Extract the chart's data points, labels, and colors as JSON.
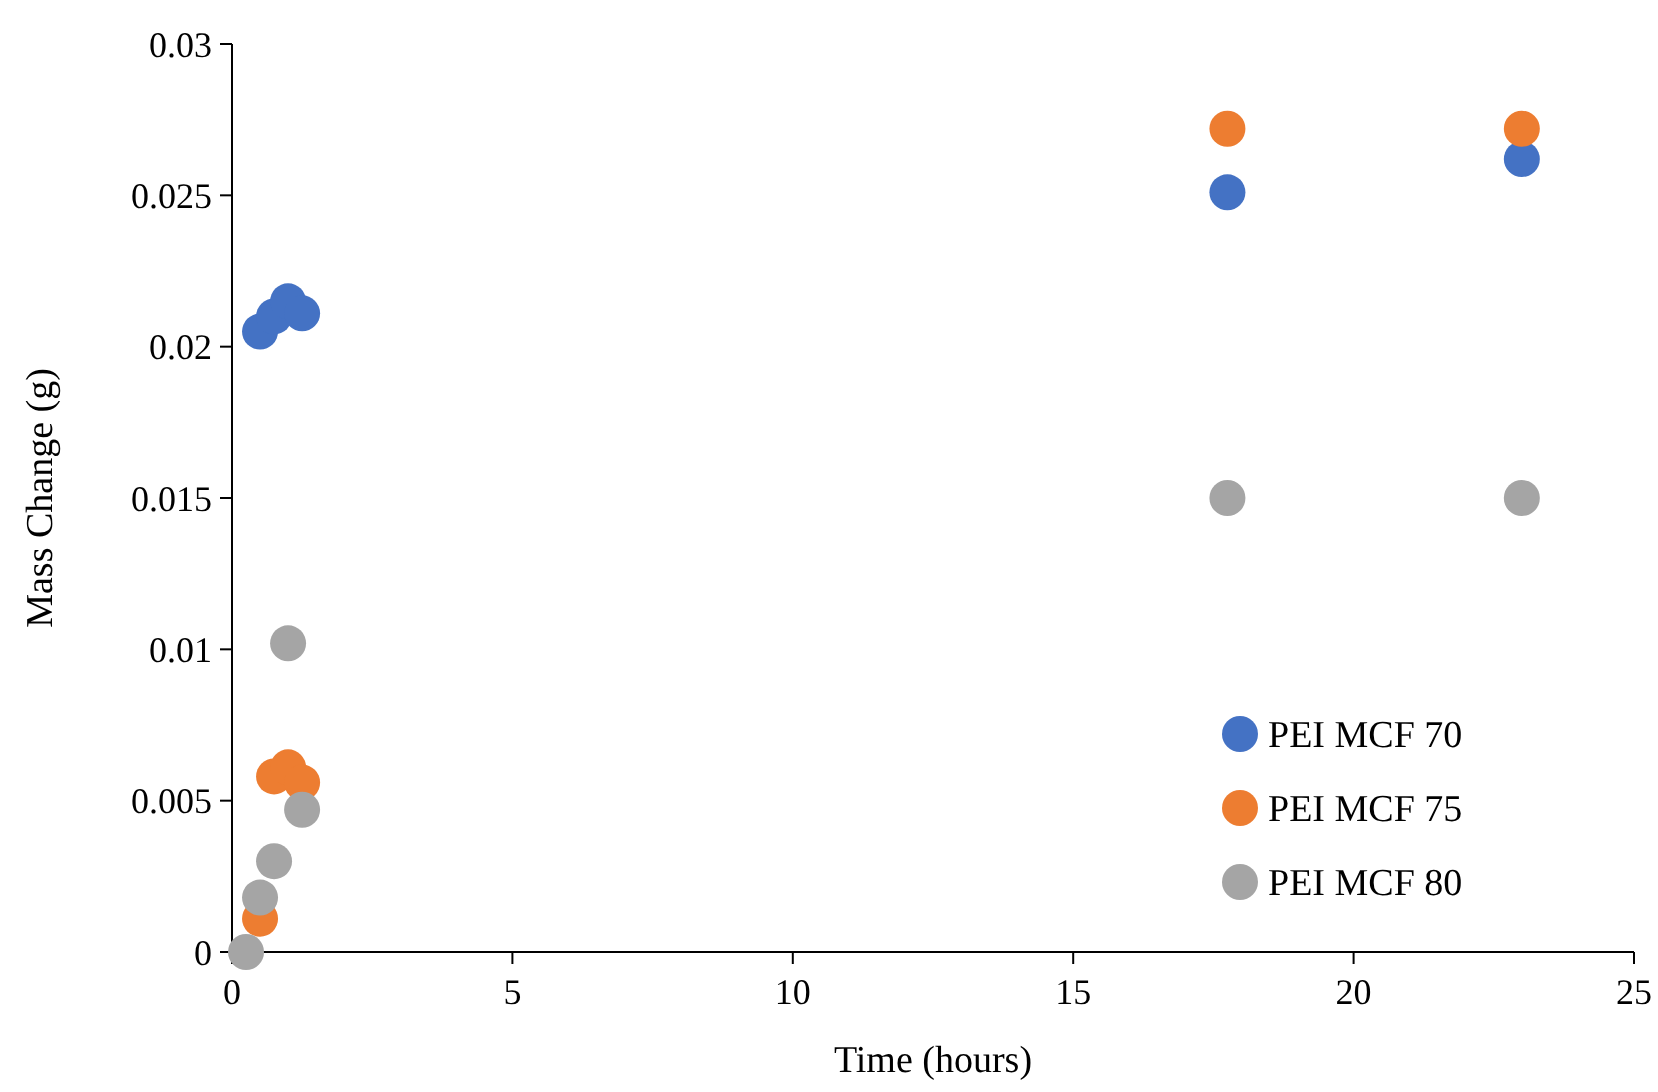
{
  "chart_data": {
    "type": "scatter",
    "xlabel": "Time (hours)",
    "ylabel": "Mass Change (g)",
    "x": [
      0.25,
      0.5,
      0.75,
      1,
      1.25,
      17.75,
      23
    ],
    "series": [
      {
        "name": "PEI MCF 70",
        "color": "#4472c4",
        "values": [
          null,
          0.0205,
          0.021,
          0.0215,
          0.0211,
          0.0251,
          0.0262
        ]
      },
      {
        "name": "PEI MCF 75",
        "color": "#ed7d31",
        "values": [
          null,
          0.0011,
          0.0058,
          0.0061,
          0.0056,
          0.0272,
          0.0272
        ]
      },
      {
        "name": "PEI MCF 80",
        "color": "#a5a5a5",
        "values": [
          0,
          0.0018,
          0.003,
          0.0102,
          0.0047,
          0.015,
          0.015
        ]
      }
    ],
    "xlim": [
      0,
      25
    ],
    "xticks": [
      0,
      5,
      10,
      15,
      20,
      25
    ],
    "ylim": [
      0,
      0.03
    ],
    "yticks": [
      0,
      0.005,
      0.01,
      0.015,
      0.02,
      0.025,
      0.03
    ],
    "marker": "circle",
    "legend": "right",
    "grid": false
  }
}
